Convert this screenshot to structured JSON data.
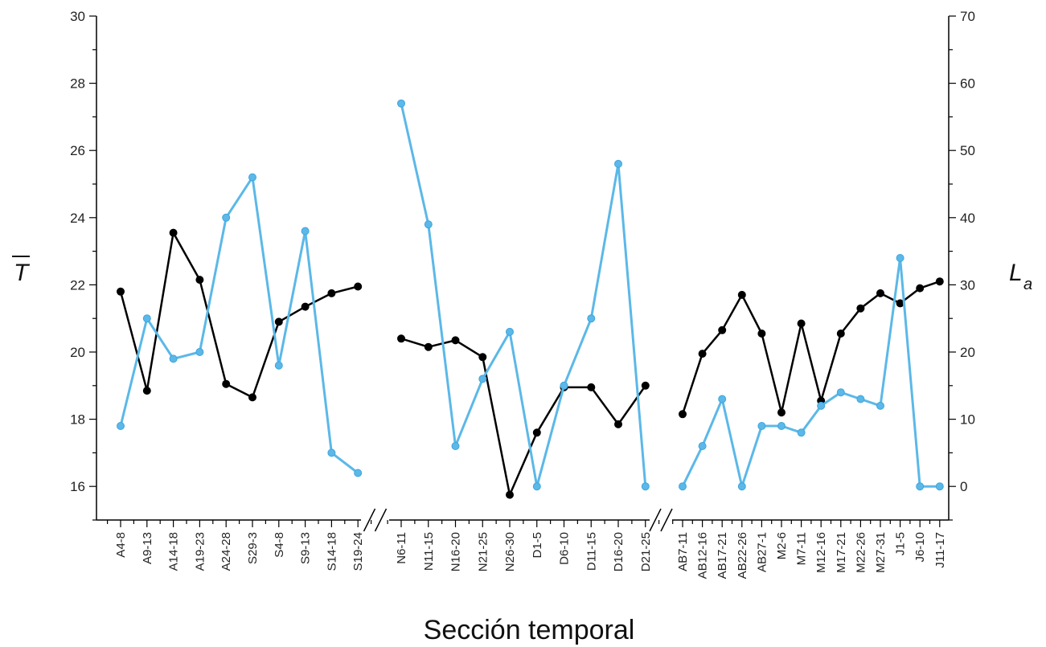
{
  "chart_data": {
    "type": "line",
    "xlabel": "Sección temporal",
    "ylabel_left": "T",
    "ylabel_right": "L",
    "ylabel_right_subscript": "a",
    "ylim_left": [
      15,
      30
    ],
    "yticks_left": [
      16,
      18,
      20,
      22,
      24,
      26,
      28,
      30
    ],
    "ylim_right": [
      -5,
      70
    ],
    "yticks_right": [
      0,
      10,
      20,
      30,
      40,
      50,
      60,
      70
    ],
    "grid": false,
    "axis_breaks": 2,
    "segments": [
      {
        "categories": [
          "A4-8",
          "A9-13",
          "A14-18",
          "A19-23",
          "A24-28",
          "S29-3",
          "S4-8",
          "S9-13",
          "S14-18",
          "S19-24"
        ],
        "series": [
          {
            "axis": "left",
            "color": "#000000",
            "values": [
              21.8,
              18.85,
              23.55,
              22.15,
              19.05,
              18.65,
              20.9,
              21.35,
              21.75,
              21.95
            ]
          },
          {
            "axis": "right",
            "color": "#5bb8e8",
            "values": [
              9,
              25,
              19,
              20,
              40,
              46,
              18,
              38,
              5,
              2
            ]
          }
        ]
      },
      {
        "categories": [
          "N6-11",
          "N11-15",
          "N16-20",
          "N21-25",
          "N26-30",
          "D1-5",
          "D6-10",
          "D11-15",
          "D16-20",
          "D21-25"
        ],
        "series": [
          {
            "axis": "left",
            "color": "#000000",
            "values": [
              20.4,
              20.15,
              20.35,
              19.85,
              15.75,
              17.6,
              18.95,
              18.95,
              17.85,
              19.0
            ]
          },
          {
            "axis": "right",
            "color": "#5bb8e8",
            "values": [
              57,
              39,
              6,
              16,
              23,
              0,
              15,
              25,
              48,
              0
            ]
          }
        ]
      },
      {
        "categories": [
          "AB7-11",
          "AB12-16",
          "AB17-21",
          "AB22-26",
          "AB27-1",
          "M2-6",
          "M7-11",
          "M12-16",
          "M17-21",
          "M22-26",
          "M27-31",
          "J1-5",
          "J6-10",
          "J11-17"
        ],
        "series": [
          {
            "axis": "left",
            "color": "#000000",
            "values": [
              18.15,
              19.95,
              20.65,
              21.7,
              20.55,
              18.2,
              20.85,
              18.55,
              20.55,
              21.3,
              21.75,
              21.45,
              21.9,
              22.1
            ]
          },
          {
            "axis": "right",
            "color": "#5bb8e8",
            "values": [
              0,
              6,
              13,
              0,
              9,
              9,
              8,
              12,
              14,
              13,
              12,
              34,
              0,
              0
            ]
          }
        ]
      }
    ]
  }
}
